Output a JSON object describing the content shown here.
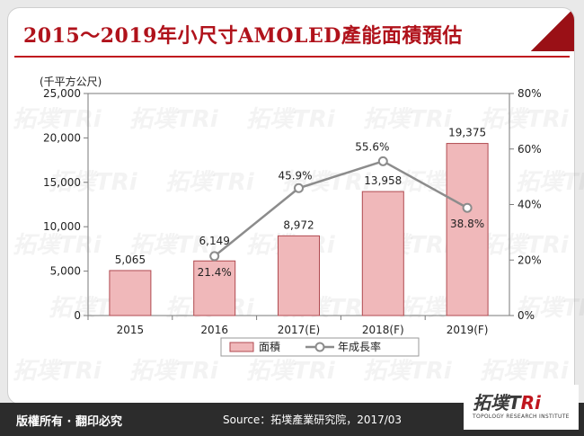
{
  "title": "2015～2019年小尺寸AMOLED產能面積預估",
  "brand": {
    "name_main": "拓墣T",
    "name_accent": "Ri",
    "subtitle": "TOPOLOGY RESEARCH INSTITUTE",
    "watermark_text": "拓墣TRi"
  },
  "footer": {
    "rights": "版權所有 · 翻印必究",
    "source": "Source：拓墣產業研究院，2017/03"
  },
  "colors": {
    "bar_fill": "#f0b8ba",
    "bar_stroke": "#b04a50",
    "line": "#8c8c8c",
    "title": "#b0121b",
    "footer_bg": "#2c2c2c"
  },
  "chart_data": {
    "type": "bar",
    "unit_label": "(千平方公尺)",
    "categories": [
      "2015",
      "2016",
      "2017(E)",
      "2018(F)",
      "2019(F)"
    ],
    "series": [
      {
        "name": "面積",
        "type": "bar",
        "axis": "left",
        "values": [
          5065,
          6149,
          8972,
          13958,
          19375
        ],
        "labels": [
          "5,065",
          "6,149",
          "8,972",
          "13,958",
          "19,375"
        ]
      },
      {
        "name": "年成長率",
        "type": "line",
        "axis": "right",
        "values": [
          null,
          21.4,
          45.9,
          55.6,
          38.8
        ],
        "labels": [
          "",
          "21.4%",
          "45.9%",
          "55.6%",
          "38.8%"
        ]
      }
    ],
    "y_left": {
      "min": 0,
      "max": 25000,
      "ticks": [
        0,
        5000,
        10000,
        15000,
        20000,
        25000
      ],
      "tick_labels": [
        "0",
        "5,000",
        "10,000",
        "15,000",
        "20,000",
        "25,000"
      ]
    },
    "y_right": {
      "min": 0,
      "max": 80,
      "ticks": [
        0,
        20,
        40,
        60,
        80
      ],
      "tick_labels": [
        "0%",
        "20%",
        "40%",
        "60%",
        "80%"
      ]
    },
    "legend_position": "bottom",
    "grid": false
  }
}
